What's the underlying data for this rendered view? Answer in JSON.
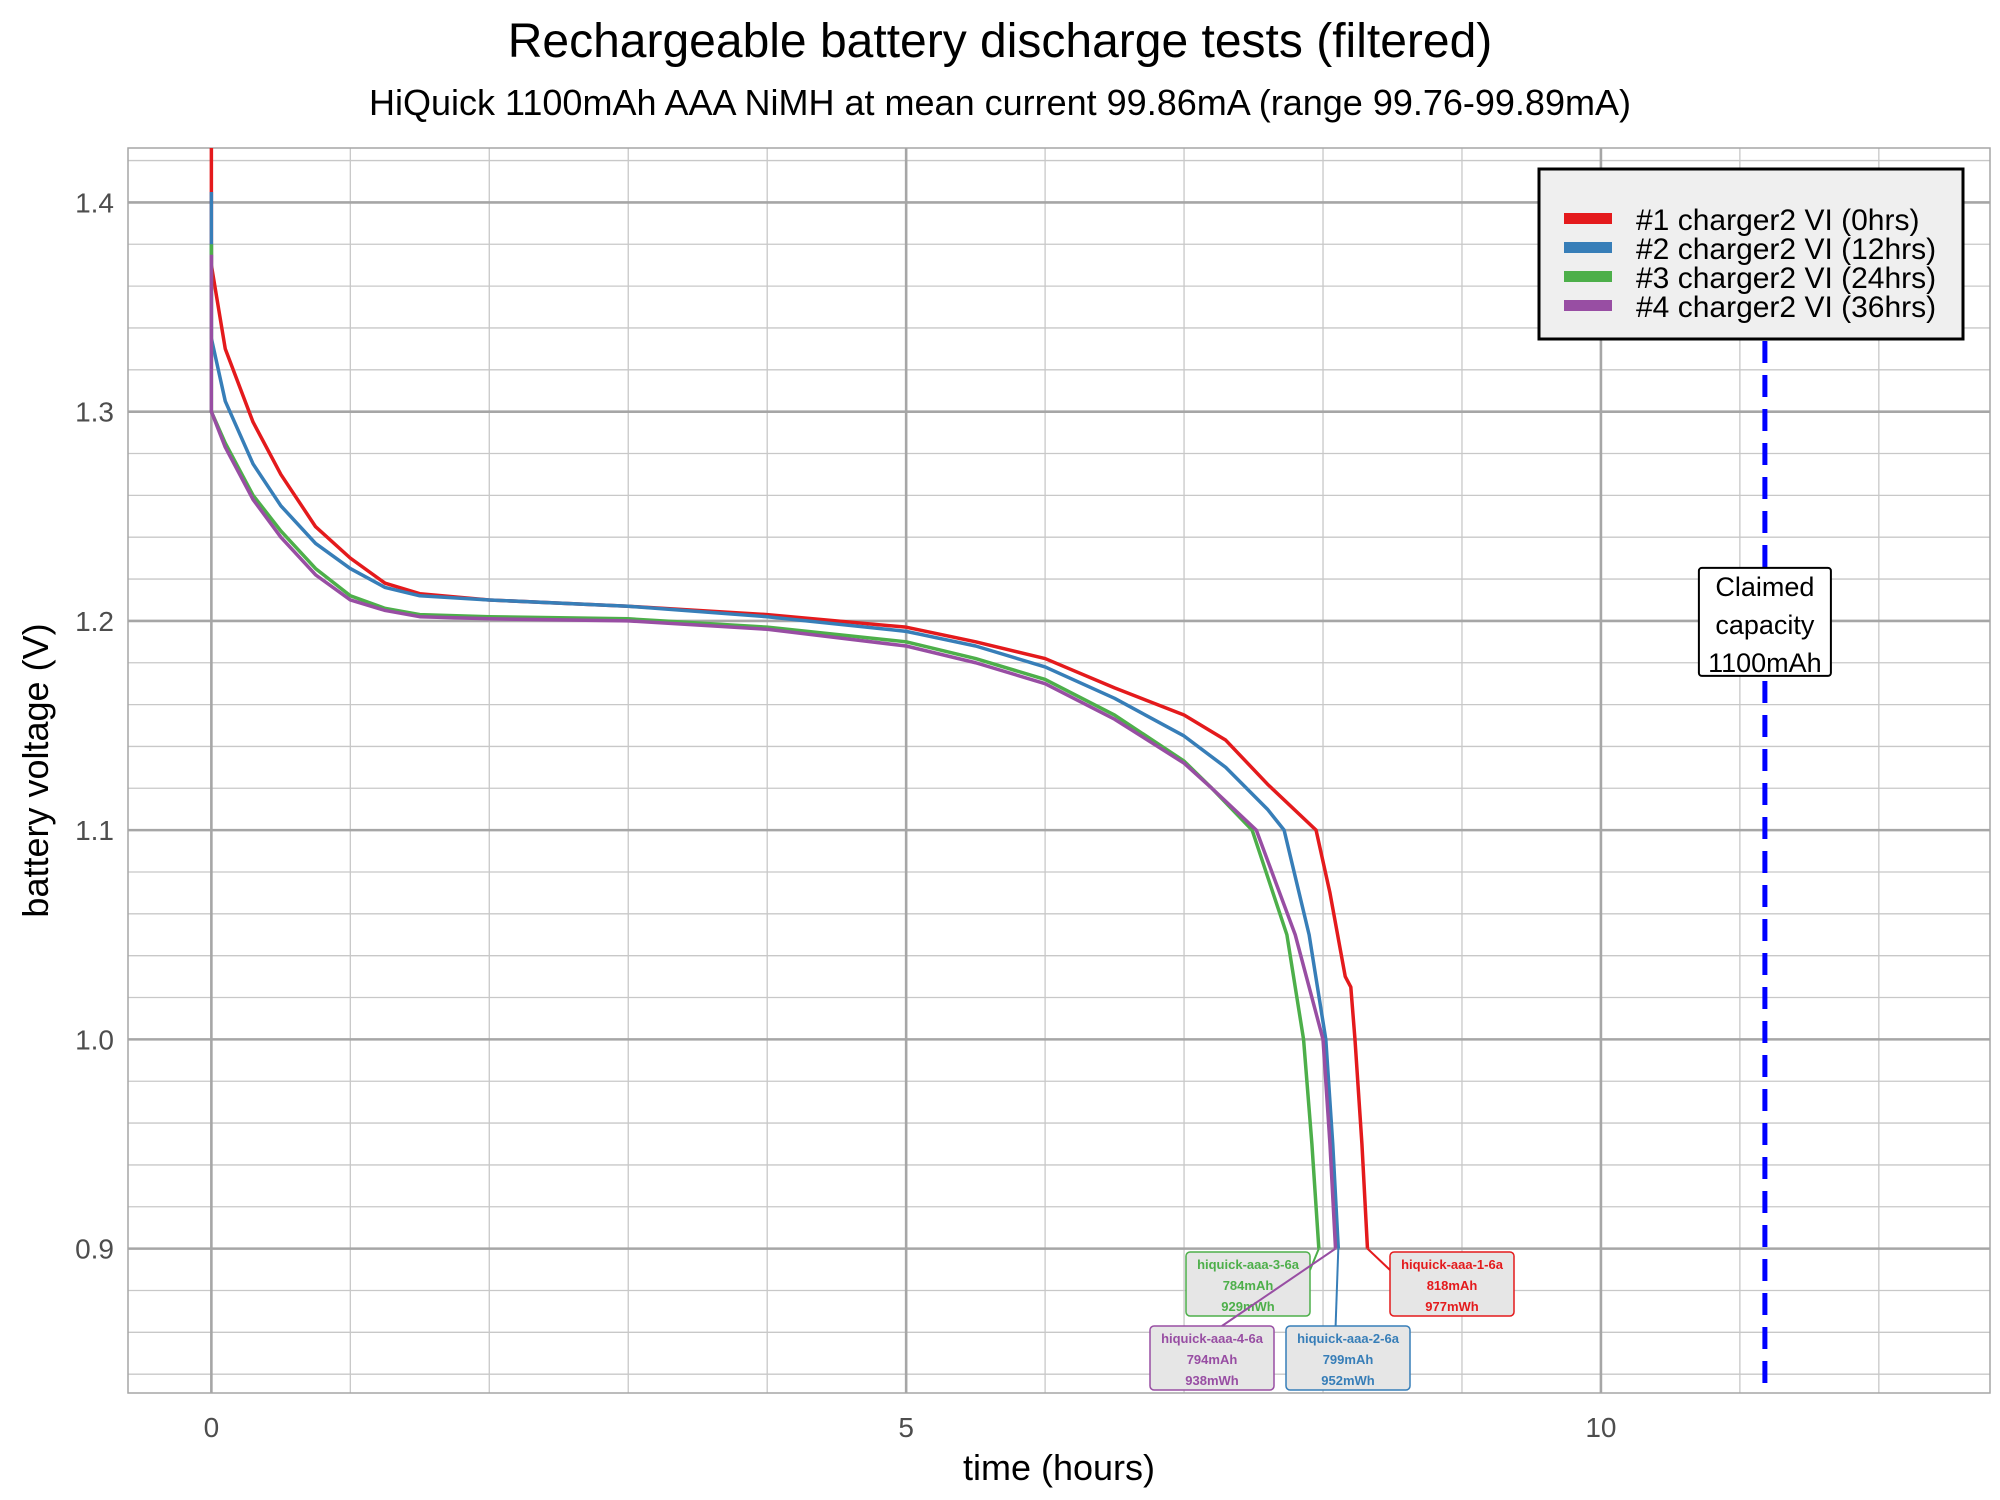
{
  "chart_data": {
    "type": "line",
    "title": "Rechargeable battery discharge tests (filtered)",
    "subtitle": "HiQuick 1100mAh AAA NiMH at mean current 99.86mA (range 99.76-99.89mA)",
    "xlabel": "time (hours)",
    "ylabel": "battery voltage (V)",
    "xlim": [
      -0.6,
      12.8
    ],
    "ylim": [
      0.831,
      1.426
    ],
    "x_ticks": [
      0,
      5,
      10
    ],
    "y_ticks": [
      0.9,
      1.0,
      1.1,
      1.2,
      1.3,
      1.4
    ],
    "grid": true,
    "legend_position": "top-right",
    "series": [
      {
        "name": "#1 charger2 VI (0hrs)",
        "color": "#e41a1c",
        "points": [
          [
            0,
            1.426
          ],
          [
            0,
            1.37
          ],
          [
            0.1,
            1.33
          ],
          [
            0.3,
            1.295
          ],
          [
            0.5,
            1.27
          ],
          [
            0.75,
            1.245
          ],
          [
            1,
            1.23
          ],
          [
            1.25,
            1.218
          ],
          [
            1.5,
            1.213
          ],
          [
            2,
            1.21
          ],
          [
            3,
            1.207
          ],
          [
            4,
            1.203
          ],
          [
            5,
            1.197
          ],
          [
            5.5,
            1.19
          ],
          [
            6,
            1.182
          ],
          [
            6.5,
            1.168
          ],
          [
            7,
            1.155
          ],
          [
            7.3,
            1.143
          ],
          [
            7.6,
            1.122
          ],
          [
            7.95,
            1.1
          ],
          [
            8.05,
            1.07
          ],
          [
            8.16,
            1.03
          ],
          [
            8.2,
            1.025
          ],
          [
            8.23,
            1.0
          ],
          [
            8.28,
            0.95
          ],
          [
            8.32,
            0.9
          ]
        ]
      },
      {
        "name": "#2 charger2 VI (12hrs)",
        "color": "#377eb8",
        "points": [
          [
            0,
            1.405
          ],
          [
            0,
            1.335
          ],
          [
            0.1,
            1.305
          ],
          [
            0.3,
            1.275
          ],
          [
            0.5,
            1.255
          ],
          [
            0.75,
            1.237
          ],
          [
            1,
            1.225
          ],
          [
            1.25,
            1.216
          ],
          [
            1.5,
            1.212
          ],
          [
            2,
            1.21
          ],
          [
            3,
            1.207
          ],
          [
            4,
            1.202
          ],
          [
            5,
            1.195
          ],
          [
            5.5,
            1.188
          ],
          [
            6,
            1.178
          ],
          [
            6.5,
            1.163
          ],
          [
            7,
            1.145
          ],
          [
            7.3,
            1.13
          ],
          [
            7.6,
            1.11
          ],
          [
            7.72,
            1.1
          ],
          [
            7.9,
            1.05
          ],
          [
            8.02,
            1.0
          ],
          [
            8.07,
            0.95
          ],
          [
            8.11,
            0.9
          ]
        ]
      },
      {
        "name": "#3 charger2 VI (24hrs)",
        "color": "#4daf4a",
        "points": [
          [
            0,
            1.38
          ],
          [
            0,
            1.3
          ],
          [
            0.1,
            1.285
          ],
          [
            0.3,
            1.26
          ],
          [
            0.5,
            1.243
          ],
          [
            0.75,
            1.225
          ],
          [
            1,
            1.212
          ],
          [
            1.25,
            1.206
          ],
          [
            1.5,
            1.203
          ],
          [
            2,
            1.202
          ],
          [
            3,
            1.201
          ],
          [
            4,
            1.197
          ],
          [
            5,
            1.19
          ],
          [
            5.5,
            1.182
          ],
          [
            6,
            1.172
          ],
          [
            6.5,
            1.155
          ],
          [
            7,
            1.133
          ],
          [
            7.2,
            1.12
          ],
          [
            7.49,
            1.1
          ],
          [
            7.74,
            1.05
          ],
          [
            7.86,
            1.0
          ],
          [
            7.92,
            0.95
          ],
          [
            7.97,
            0.9
          ]
        ]
      },
      {
        "name": "#4 charger2 VI (36hrs)",
        "color": "#984ea3",
        "points": [
          [
            0,
            1.375
          ],
          [
            0,
            1.3
          ],
          [
            0.1,
            1.283
          ],
          [
            0.3,
            1.258
          ],
          [
            0.5,
            1.24
          ],
          [
            0.75,
            1.222
          ],
          [
            1,
            1.21
          ],
          [
            1.25,
            1.205
          ],
          [
            1.5,
            1.202
          ],
          [
            2,
            1.201
          ],
          [
            3,
            1.2
          ],
          [
            4,
            1.196
          ],
          [
            5,
            1.188
          ],
          [
            5.5,
            1.18
          ],
          [
            6,
            1.17
          ],
          [
            6.5,
            1.153
          ],
          [
            7,
            1.132
          ],
          [
            7.2,
            1.12
          ],
          [
            7.52,
            1.1
          ],
          [
            7.8,
            1.05
          ],
          [
            8.0,
            1.0
          ],
          [
            8.05,
            0.95
          ],
          [
            8.09,
            0.9
          ]
        ]
      }
    ],
    "vline": {
      "x": 11.18,
      "color": "#0000ff",
      "style": "dashed",
      "label": [
        "Claimed",
        "capacity",
        "1100mAh"
      ],
      "label_y": 1.2
    },
    "annotations": [
      {
        "series": 2,
        "lines": [
          "hiquick-aaa-3-6a",
          "784mAh",
          "929mWh"
        ],
        "color": "#4daf4a"
      },
      {
        "series": 3,
        "lines": [
          "hiquick-aaa-4-6a",
          "794mAh",
          "938mWh"
        ],
        "color": "#984ea3"
      },
      {
        "series": 1,
        "lines": [
          "hiquick-aaa-2-6a",
          "799mAh",
          "952mWh"
        ],
        "color": "#377eb8"
      },
      {
        "series": 0,
        "lines": [
          "hiquick-aaa-1-6a",
          "818mAh",
          "977mWh"
        ],
        "color": "#e41a1c"
      }
    ]
  }
}
